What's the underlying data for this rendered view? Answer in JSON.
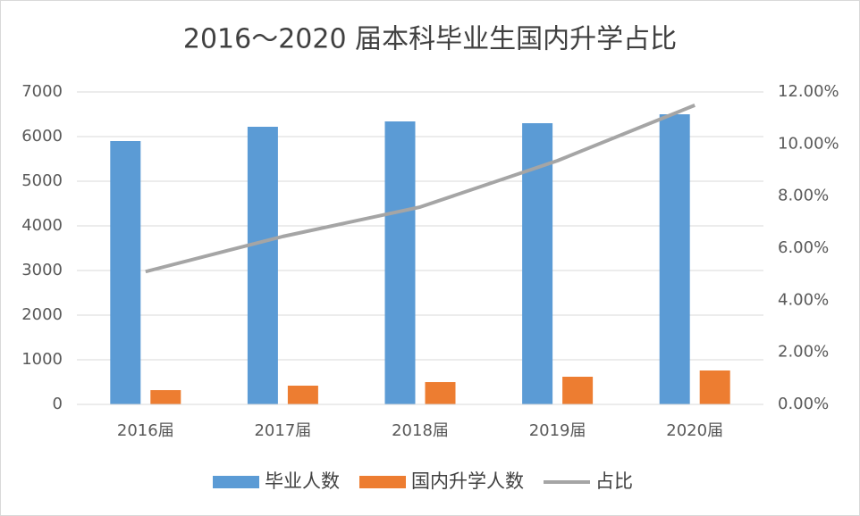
{
  "chart_data": {
    "type": "bar",
    "title": "2016～2020 届本科毕业生国内升学占比",
    "categories": [
      "2016届",
      "2017届",
      "2018届",
      "2019届",
      "2020届"
    ],
    "series": [
      {
        "name": "毕业人数",
        "color": "#5b9bd5",
        "type": "bar",
        "values": [
          5900,
          6220,
          6340,
          6300,
          6500
        ]
      },
      {
        "name": "国内升学人数",
        "color": "#ed7d31",
        "type": "bar",
        "values": [
          320,
          420,
          500,
          620,
          760
        ]
      },
      {
        "name": "占比",
        "color": "#a5a5a5",
        "type": "line",
        "axis": "y2",
        "values": [
          5.1,
          6.45,
          7.58,
          9.36,
          11.49
        ]
      }
    ],
    "ylim": [
      0,
      7000
    ],
    "yticks": [
      0,
      1000,
      2000,
      3000,
      4000,
      5000,
      6000,
      7000
    ],
    "y2lim": [
      0,
      12
    ],
    "y2ticks": [
      {
        "value": 0,
        "label": "0.00%"
      },
      {
        "value": 2,
        "label": "2.00%"
      },
      {
        "value": 4,
        "label": "4.00%"
      },
      {
        "value": 6,
        "label": "6.00%"
      },
      {
        "value": 8,
        "label": "8.00%"
      },
      {
        "value": 10,
        "label": "10.00%"
      },
      {
        "value": 12,
        "label": "12.00%"
      }
    ],
    "grid": true,
    "legend": "bottom"
  }
}
